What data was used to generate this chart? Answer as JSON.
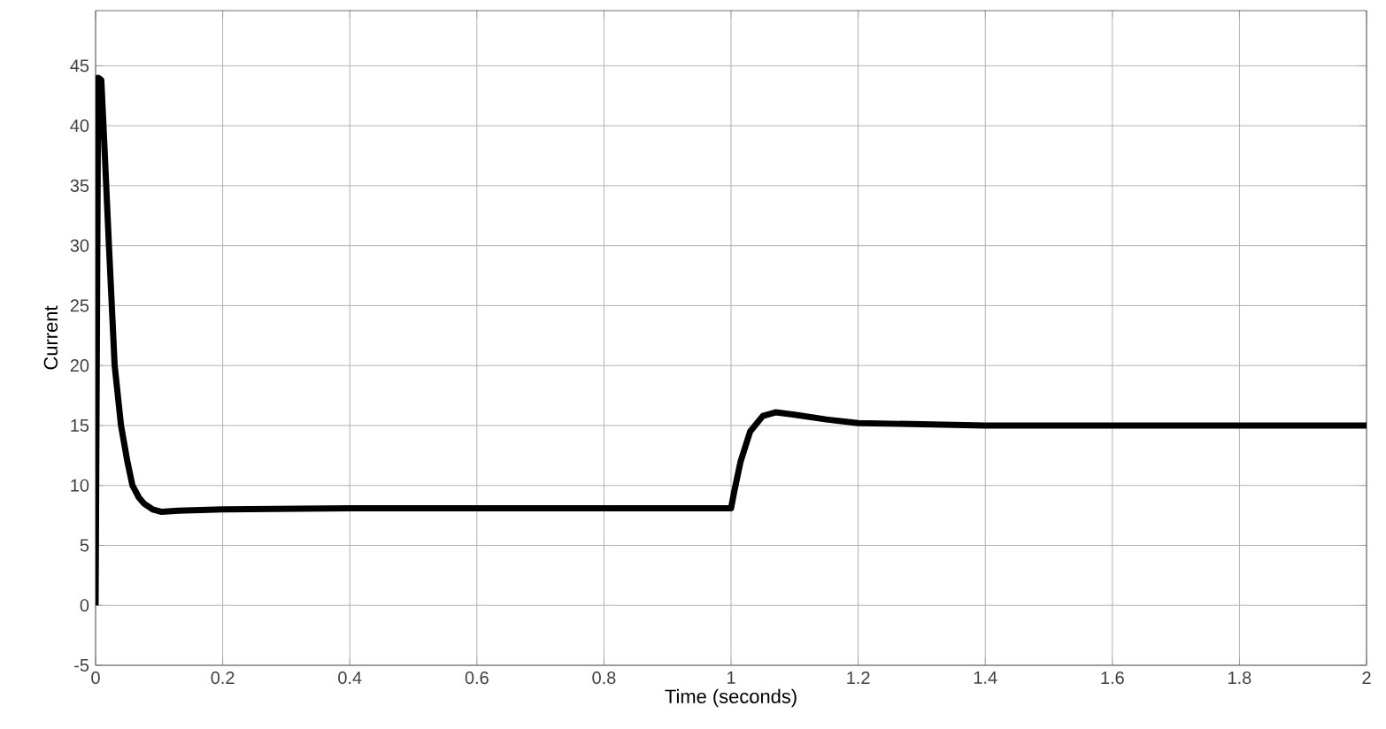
{
  "chart_data": {
    "type": "line",
    "xlabel": "Time (seconds)",
    "ylabel": "Current",
    "x": [
      0,
      0.004,
      0.009,
      0.015,
      0.021,
      0.03,
      0.04,
      0.05,
      0.058,
      0.068,
      0.076,
      0.09,
      0.104,
      0.13,
      0.2,
      0.4,
      0.6,
      0.8,
      0.95,
      1.0,
      1.005,
      1.015,
      1.03,
      1.05,
      1.07,
      1.1,
      1.15,
      1.2,
      1.3,
      1.4,
      1.6,
      1.8,
      2.0
    ],
    "values": [
      0,
      44,
      43.8,
      37,
      30,
      20,
      15,
      12,
      10,
      9,
      8.5,
      8,
      7.8,
      7.9,
      8,
      8.1,
      8.1,
      8.1,
      8.1,
      8.1,
      9.5,
      12,
      14.5,
      15.8,
      16.1,
      15.9,
      15.5,
      15.2,
      15.1,
      15,
      15,
      15,
      15
    ],
    "color": "#000000",
    "xlim": [
      0,
      2
    ],
    "ylim": [
      -5,
      49.6
    ],
    "xticks": [
      0,
      0.2,
      0.4,
      0.6,
      0.8,
      1,
      1.2,
      1.4,
      1.6,
      1.8,
      2
    ],
    "yticks": [
      -5,
      0,
      5,
      10,
      15,
      20,
      25,
      30,
      35,
      40,
      45
    ],
    "grid": true
  }
}
